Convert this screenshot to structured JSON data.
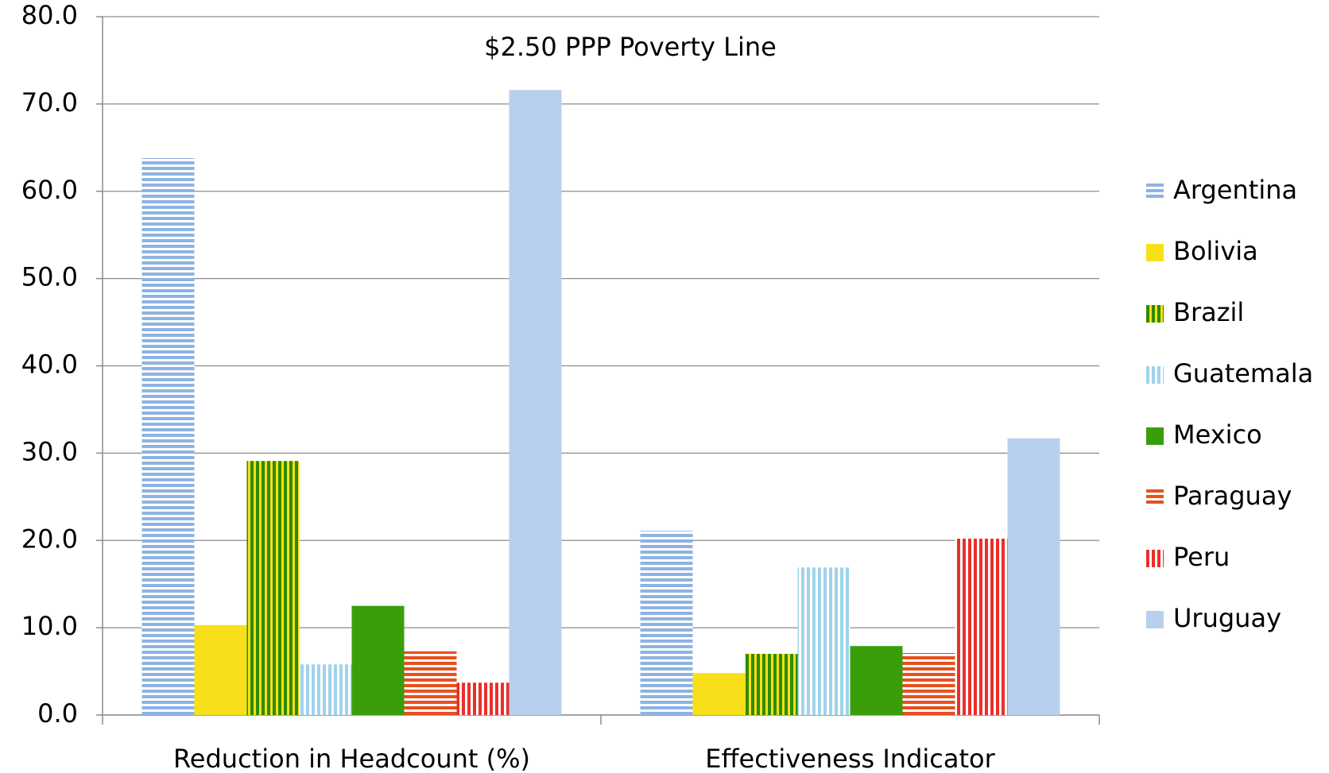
{
  "chart_data": {
    "type": "bar",
    "title": "$2.50 PPP Poverty Line",
    "categories": [
      "Reduction in Headcount (%)",
      "Effectiveness Indicator"
    ],
    "series": [
      {
        "name": "Argentina",
        "color": "#8db3e2",
        "hatch": "horizontal",
        "values": [
          63.8,
          21.1
        ]
      },
      {
        "name": "Bolivia",
        "color": "#f7e01a",
        "hatch": "none",
        "values": [
          10.3,
          4.8
        ]
      },
      {
        "name": "Brazil",
        "color": "#2e8b00",
        "hatch": "vertical",
        "hatch_color": "#f7e01a",
        "values": [
          29.1,
          7.0
        ]
      },
      {
        "name": "Guatemala",
        "color": "#9fd3ec",
        "hatch": "vertical",
        "values": [
          5.8,
          16.9
        ]
      },
      {
        "name": "Mexico",
        "color": "#3a9e0a",
        "hatch": "none",
        "values": [
          12.5,
          7.9
        ]
      },
      {
        "name": "Paraguay",
        "color": "#e8501e",
        "hatch": "horizontal",
        "values": [
          7.3,
          7.1
        ]
      },
      {
        "name": "Peru",
        "color": "#e8302a",
        "hatch": "vertical",
        "values": [
          3.7,
          20.2
        ]
      },
      {
        "name": "Uruguay",
        "color": "#b8d0ee",
        "hatch": "none",
        "values": [
          71.6,
          31.7
        ]
      }
    ],
    "ylim": [
      0,
      80
    ],
    "yticks": [
      {
        "value": 0,
        "label": "0.0"
      },
      {
        "value": 10,
        "label": "10.0"
      },
      {
        "value": 20,
        "label": "20.0"
      },
      {
        "value": 30,
        "label": "30.0"
      },
      {
        "value": 40,
        "label": "40.0"
      },
      {
        "value": 50,
        "label": "50.0"
      },
      {
        "value": 60,
        "label": "60.0"
      },
      {
        "value": 70,
        "label": "70.0"
      },
      {
        "value": 80,
        "label": "80.0"
      }
    ],
    "grid": true,
    "legend": "right"
  }
}
